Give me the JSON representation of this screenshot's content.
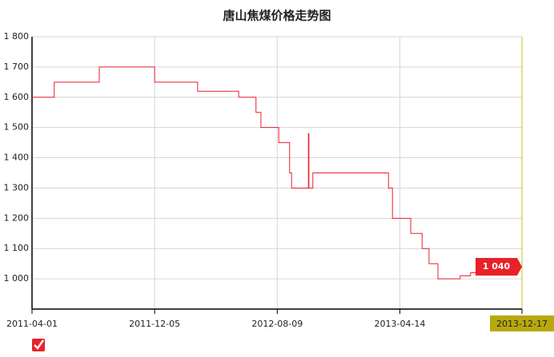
{
  "chart_data": {
    "type": "line",
    "step": "post",
    "title": "唐山焦煤价格走势图",
    "color": "#e8212a",
    "x": [
      "2011-04-01",
      "2011-05-16",
      "2011-08-15",
      "2011-12-05",
      "2012-03-01",
      "2012-05-23",
      "2012-06-27",
      "2012-07-07",
      "2012-08-12",
      "2012-09-03",
      "2012-09-07",
      "2012-10-11",
      "2012-10-12",
      "2012-10-20",
      "2013-03-22",
      "2013-03-30",
      "2013-05-06",
      "2013-05-29",
      "2013-06-12",
      "2013-06-30",
      "2013-08-14",
      "2013-09-04",
      "2013-09-24",
      "2013-10-18",
      "2013-12-17"
    ],
    "values": [
      1600,
      1650,
      1700,
      1650,
      1620,
      1600,
      1550,
      1500,
      1450,
      1350,
      1300,
      1480,
      1300,
      1350,
      1300,
      1200,
      1150,
      1100,
      1050,
      1000,
      1010,
      1020,
      1030,
      1040,
      1040
    ],
    "value_labels": [
      null,
      null,
      null,
      null,
      null,
      null,
      null,
      null,
      null,
      null,
      null,
      null,
      null,
      null,
      null,
      null,
      null,
      null,
      null,
      null,
      null,
      null,
      null,
      null,
      "1 040"
    ],
    "xlim": [
      "2011-04-01",
      "2013-12-17"
    ],
    "xticks": [
      "2011-04-01",
      "2011-12-05",
      "2012-08-09",
      "2013-04-14",
      "2013-12-17"
    ],
    "ylim": [
      900,
      1800
    ],
    "yticks": [
      {
        "value": 1000,
        "label": "1 000"
      },
      {
        "value": 1100,
        "label": "1 100"
      },
      {
        "value": 1200,
        "label": "1 200"
      },
      {
        "value": 1300,
        "label": "1 300"
      },
      {
        "value": 1400,
        "label": "1 400"
      },
      {
        "value": 1500,
        "label": "1 500"
      },
      {
        "value": 1600,
        "label": "1 600"
      },
      {
        "value": 1700,
        "label": "1 700"
      },
      {
        "value": 1800,
        "label": "1 800"
      }
    ],
    "grid": true
  }
}
